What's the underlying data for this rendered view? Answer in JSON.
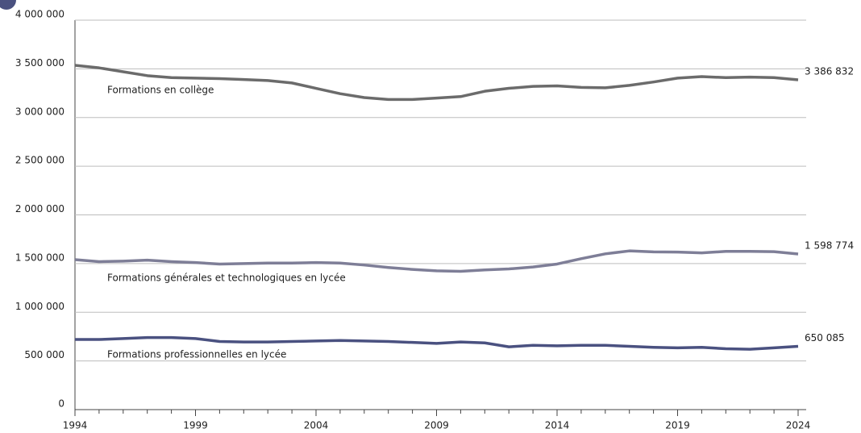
{
  "chart_data": {
    "type": "line",
    "x": [
      1994,
      1995,
      1996,
      1997,
      1998,
      1999,
      2000,
      2001,
      2002,
      2003,
      2004,
      2005,
      2006,
      2007,
      2008,
      2009,
      2010,
      2011,
      2012,
      2013,
      2014,
      2015,
      2016,
      2017,
      2018,
      2019,
      2020,
      2021,
      2022,
      2023,
      2024
    ],
    "xlim": [
      1994,
      2024
    ],
    "xticks": [
      1994,
      1999,
      2004,
      2009,
      2014,
      2019,
      2024
    ],
    "ylim": [
      0,
      4000000
    ],
    "yticks": [
      0,
      {
        "value": 500000,
        "label": "500 000"
      },
      {
        "value": 1000000,
        "label": "1 000 000"
      },
      {
        "value": 1500000,
        "label": "1 500 000"
      },
      {
        "value": 2000000,
        "label": "2 000 000"
      },
      {
        "value": 2500000,
        "label": "2 500 000"
      },
      {
        "value": 3000000,
        "label": "3 000 000"
      },
      {
        "value": 3500000,
        "label": "3 500 000"
      },
      {
        "value": 4000000,
        "label": "4 000 000"
      }
    ],
    "grid": true,
    "series": [
      {
        "name": "Formations en collège",
        "color": "#6b6b6b",
        "values": [
          3536000,
          3510000,
          3470000,
          3430000,
          3410000,
          3405000,
          3400000,
          3390000,
          3380000,
          3355000,
          3300000,
          3245000,
          3205000,
          3185000,
          3185000,
          3200000,
          3215000,
          3270000,
          3300000,
          3320000,
          3325000,
          3310000,
          3305000,
          3330000,
          3365000,
          3405000,
          3420000,
          3410000,
          3415000,
          3410000,
          3386832
        ],
        "value_labels": {
          "30": "3 386 832"
        }
      },
      {
        "name": "Formations générales et technologiques en lycée",
        "color": "#7e7e97",
        "values": [
          1540000,
          1520000,
          1525000,
          1535000,
          1520000,
          1510000,
          1495000,
          1500000,
          1505000,
          1505000,
          1510000,
          1505000,
          1485000,
          1460000,
          1440000,
          1425000,
          1420000,
          1435000,
          1445000,
          1465000,
          1495000,
          1550000,
          1600000,
          1630000,
          1620000,
          1618000,
          1610000,
          1625000,
          1625000,
          1622000,
          1598774
        ],
        "value_labels": {
          "30": "1 598 774"
        }
      },
      {
        "name": "Formations professionnelles en lycée",
        "color": "#4a5180",
        "values": [
          720000,
          720000,
          730000,
          740000,
          740000,
          730000,
          700000,
          695000,
          695000,
          700000,
          705000,
          710000,
          705000,
          700000,
          690000,
          680000,
          695000,
          685000,
          645000,
          660000,
          655000,
          660000,
          660000,
          650000,
          640000,
          635000,
          640000,
          625000,
          620000,
          635000,
          650085
        ],
        "value_labels": {
          "30": "650 085"
        }
      }
    ]
  }
}
